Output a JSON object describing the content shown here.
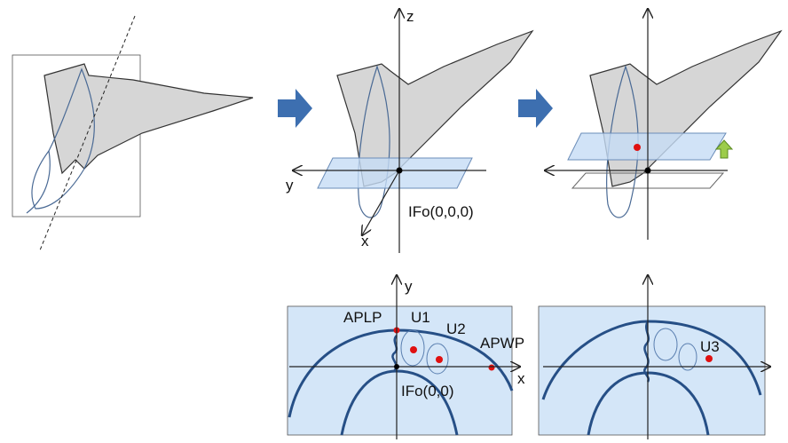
{
  "top": {
    "z_label": "z",
    "y_label": "y",
    "x_label": "x",
    "origin_label": "IFo(0,0,0)"
  },
  "bottom": {
    "y_label": "y",
    "x_label": "x",
    "aplp": "APLP",
    "u1": "U1",
    "u2": "U2",
    "apwp": "APWP",
    "origin_label": "IFo(0,0)",
    "u3": "U3"
  }
}
